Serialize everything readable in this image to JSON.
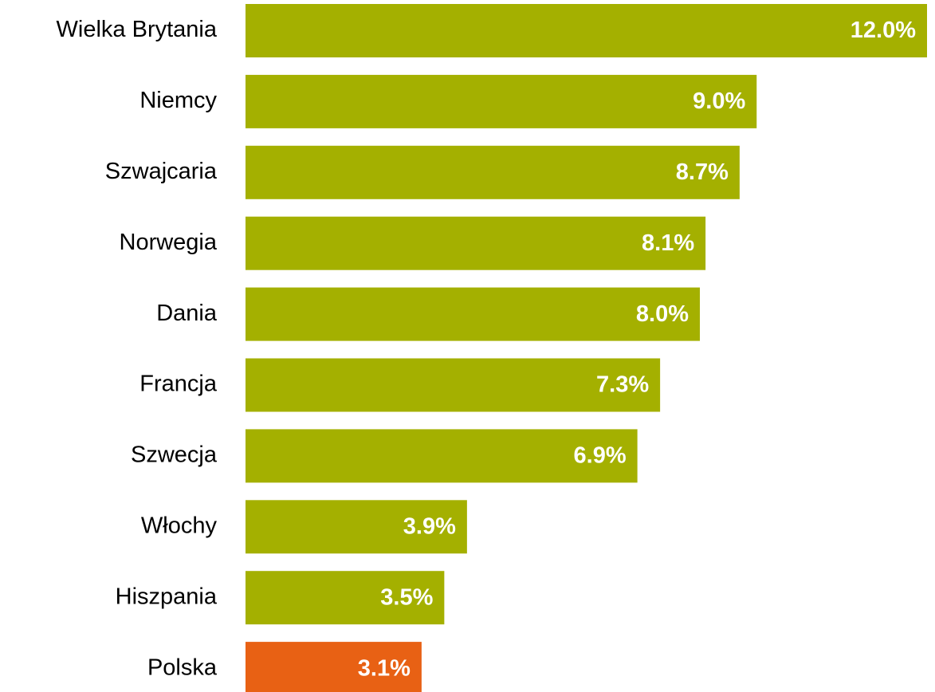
{
  "chart_data": {
    "type": "hbar",
    "categories": [
      "Wielka Brytania",
      "Niemcy",
      "Szwajcaria",
      "Norwegia",
      "Dania",
      "Francja",
      "Szwecja",
      "Włochy",
      "Hiszpania",
      "Polska"
    ],
    "values": [
      12.0,
      9.0,
      8.7,
      8.1,
      8.0,
      7.3,
      6.9,
      3.9,
      3.5,
      3.1
    ],
    "value_labels": [
      "12.0%",
      "9.0%",
      "8.7%",
      "8.1%",
      "8.0%",
      "7.3%",
      "6.9%",
      "3.9%",
      "3.5%",
      "3.1%"
    ],
    "colors": [
      "#a4b000",
      "#a4b000",
      "#a4b000",
      "#a4b000",
      "#a4b000",
      "#a4b000",
      "#a4b000",
      "#a4b000",
      "#a4b000",
      "#e86114"
    ]
  }
}
